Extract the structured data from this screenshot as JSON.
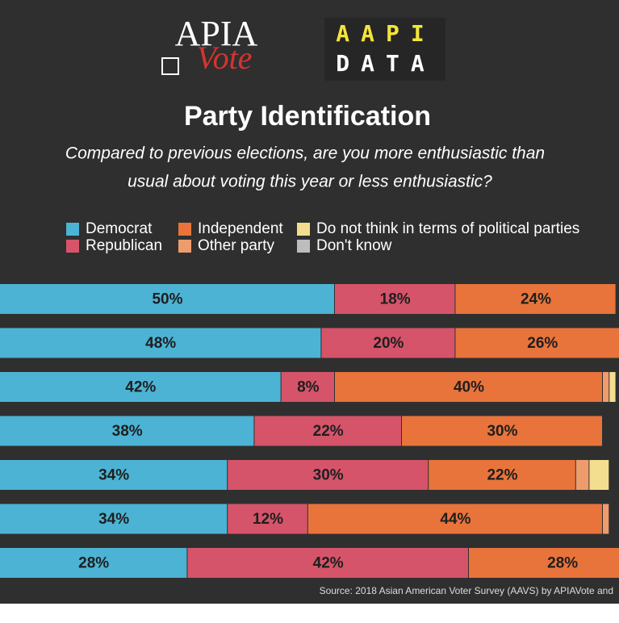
{
  "chart_data": {
    "type": "stacked-bar-horizontal",
    "logos": [
      "APIA",
      "Vote",
      "AAPI",
      "DATA"
    ],
    "title": "Party Identification",
    "subtitle": [
      "Compared to previous elections, are you more enthusiastic than",
      "usual about voting this year or less enthusiastic?"
    ],
    "source": "Source: 2018 Asian American Voter Survey (AAVS) by APIAVote and",
    "categories": [
      null,
      null,
      null,
      null,
      null,
      null,
      null
    ],
    "xlim": [
      0,
      100
    ],
    "series": [
      {
        "name": "Democrat",
        "color": "#4cb3d4",
        "values": [
          50,
          48,
          42,
          38,
          34,
          34,
          28
        ],
        "value_labels": [
          "50%",
          "48%",
          "42%",
          "38%",
          "34%",
          "34%",
          "28%"
        ]
      },
      {
        "name": "Republican",
        "color": "#d5546a",
        "values": [
          18,
          20,
          8,
          22,
          30,
          12,
          42
        ],
        "value_labels": [
          "18%",
          "20%",
          "8%",
          "22%",
          "30%",
          "12%",
          "42%"
        ]
      },
      {
        "name": "Independent",
        "color": "#e8743b",
        "values": [
          24,
          26,
          40,
          30,
          22,
          44,
          28
        ],
        "value_labels": [
          "24%",
          "26%",
          "40%",
          "30%",
          "22%",
          "44%",
          "28%"
        ]
      },
      {
        "name": "Other party",
        "color": "#ef9c6c",
        "values": [
          null,
          null,
          1,
          null,
          2,
          1,
          null
        ]
      },
      {
        "name": "Do not think in terms of political parties",
        "color": "#f2de8e",
        "values": [
          null,
          null,
          1,
          null,
          3,
          null,
          null
        ]
      },
      {
        "name": "Don't know",
        "color": "#bdbdbd",
        "values": [
          null,
          null,
          null,
          null,
          null,
          null,
          null
        ]
      }
    ]
  }
}
